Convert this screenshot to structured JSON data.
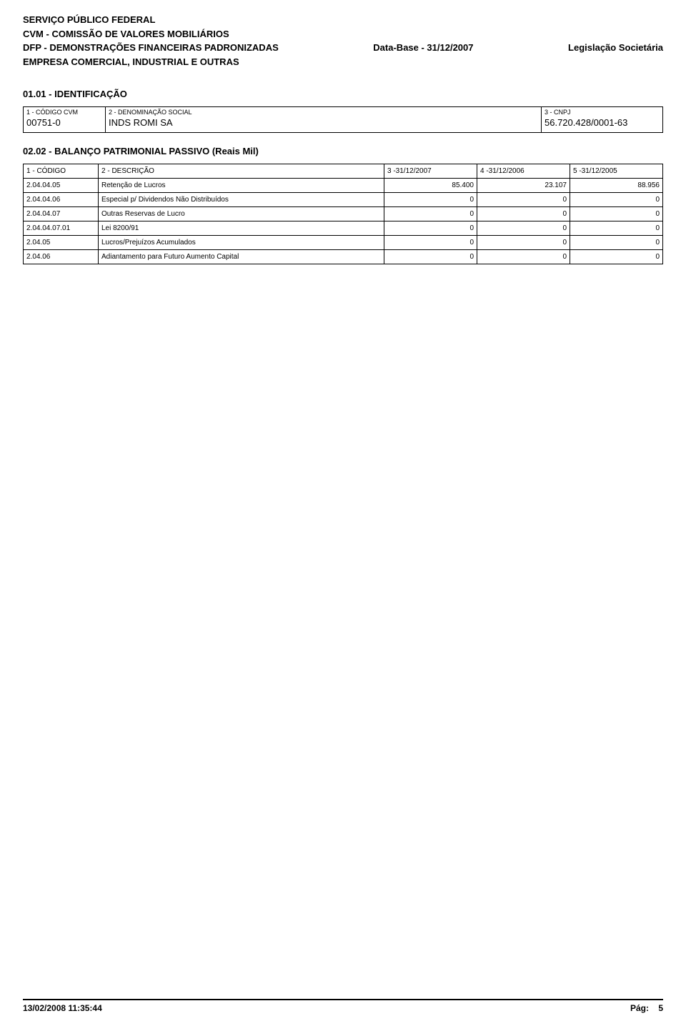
{
  "header": {
    "line1": "SERVIÇO PÚBLICO FEDERAL",
    "line2": "CVM - COMISSÃO DE VALORES MOBILIÁRIOS",
    "line3_left": "DFP - DEMONSTRAÇÕES FINANCEIRAS PADRONIZADAS",
    "line3_center": "Data-Base - 31/12/2007",
    "line3_right": "Legislação Societária",
    "line4": "EMPRESA COMERCIAL, INDUSTRIAL E OUTRAS"
  },
  "ident": {
    "section_title": "01.01 - IDENTIFICAÇÃO",
    "col1_label": "1 - CÓDIGO CVM",
    "col1_value": "00751-0",
    "col2_label": "2 - DENOMINAÇÃO SOCIAL",
    "col2_value": "INDS ROMI SA",
    "col3_label": "3 - CNPJ",
    "col3_value": "56.720.428/0001-63"
  },
  "balance": {
    "section_title": "02.02 - BALANÇO PATRIMONIAL PASSIVO (Reais Mil)",
    "headers": {
      "c1": "1 - CÓDIGO",
      "c2": "2 - DESCRIÇÃO",
      "c3": "3 -31/12/2007",
      "c4": "4 -31/12/2006",
      "c5": "5 -31/12/2005"
    },
    "rows": [
      {
        "code": "2.04.04.05",
        "desc": "Retenção de Lucros",
        "v1": "85.400",
        "v2": "23.107",
        "v3": "88.956"
      },
      {
        "code": "2.04.04.06",
        "desc": "Especial p/ Dividendos Não Distribuídos",
        "v1": "0",
        "v2": "0",
        "v3": "0"
      },
      {
        "code": "2.04.04.07",
        "desc": "Outras Reservas de Lucro",
        "v1": "0",
        "v2": "0",
        "v3": "0"
      },
      {
        "code": "2.04.04.07.01",
        "desc": "Lei 8200/91",
        "v1": "0",
        "v2": "0",
        "v3": "0"
      },
      {
        "code": "2.04.05",
        "desc": "Lucros/Prejuízos Acumulados",
        "v1": "0",
        "v2": "0",
        "v3": "0"
      },
      {
        "code": "2.04.06",
        "desc": "Adiantamento para Futuro Aumento Capital",
        "v1": "0",
        "v2": "0",
        "v3": "0"
      }
    ]
  },
  "footer": {
    "timestamp": "13/02/2008 11:35:44",
    "page_label": "Pág:",
    "page_num": "5"
  }
}
